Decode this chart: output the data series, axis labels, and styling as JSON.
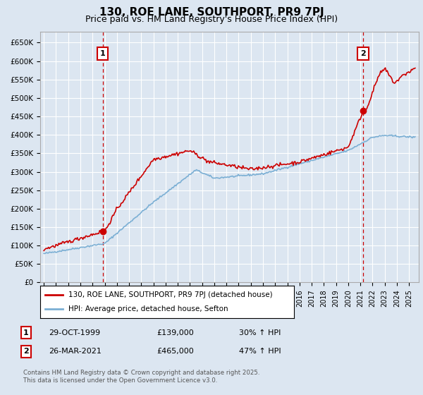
{
  "title": "130, ROE LANE, SOUTHPORT, PR9 7PJ",
  "subtitle": "Price paid vs. HM Land Registry's House Price Index (HPI)",
  "ylim": [
    0,
    680000
  ],
  "yticks": [
    0,
    50000,
    100000,
    150000,
    200000,
    250000,
    300000,
    350000,
    400000,
    450000,
    500000,
    550000,
    600000,
    650000
  ],
  "ytick_labels": [
    "£0",
    "£50K",
    "£100K",
    "£150K",
    "£200K",
    "£250K",
    "£300K",
    "£350K",
    "£400K",
    "£450K",
    "£500K",
    "£550K",
    "£600K",
    "£650K"
  ],
  "xlim_start": 1994.7,
  "xlim_end": 2025.8,
  "background_color": "#dce6f1",
  "plot_bg_color": "#dce6f1",
  "grid_color": "#ffffff",
  "hpi_line_color": "#7bafd4",
  "price_line_color": "#cc0000",
  "sale1_x": 1999.83,
  "sale1_y": 139000,
  "sale1_label": "1",
  "sale2_x": 2021.23,
  "sale2_y": 465000,
  "sale2_label": "2",
  "vline1_x": 1999.83,
  "vline2_x": 2021.23,
  "legend_price_label": "130, ROE LANE, SOUTHPORT, PR9 7PJ (detached house)",
  "legend_hpi_label": "HPI: Average price, detached house, Sefton",
  "annotation1_label": "1",
  "annotation1_date": "29-OCT-1999",
  "annotation1_price": "£139,000",
  "annotation1_hpi": "30% ↑ HPI",
  "annotation2_label": "2",
  "annotation2_date": "26-MAR-2021",
  "annotation2_price": "£465,000",
  "annotation2_hpi": "47% ↑ HPI",
  "footnote": "Contains HM Land Registry data © Crown copyright and database right 2025.\nThis data is licensed under the Open Government Licence v3.0.",
  "title_fontsize": 11,
  "subtitle_fontsize": 9
}
